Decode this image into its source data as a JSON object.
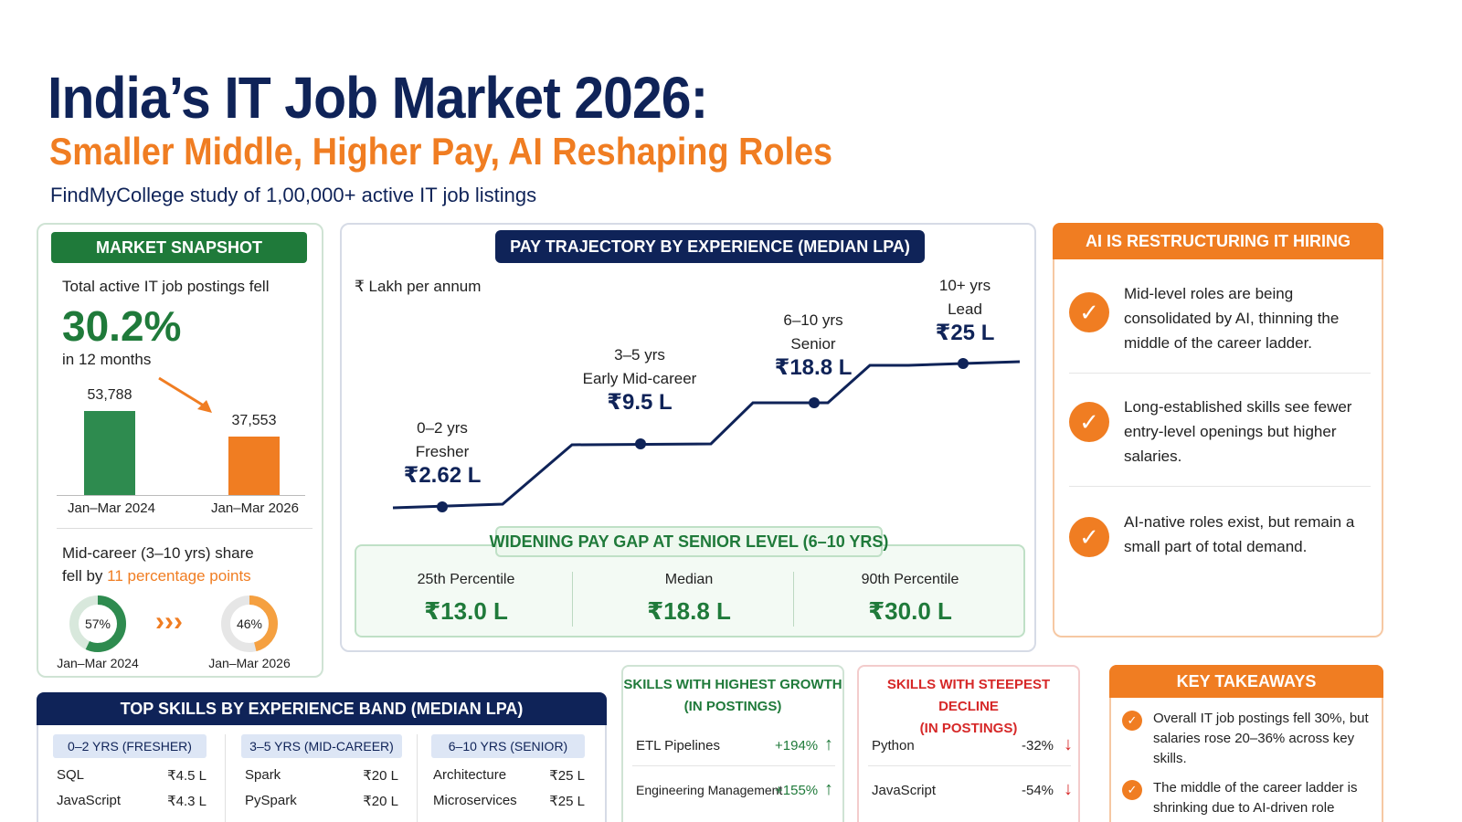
{
  "header": {
    "title": "India’s IT Job Market 2026:",
    "subtitle": "Smaller Middle, Higher Pay, AI Reshaping Roles",
    "source": "FindMyCollege study of 1,00,000+ active IT job listings"
  },
  "snapshot": {
    "heading": "MARKET SNAPSHOT",
    "intro": "Total active IT job postings fell",
    "drop_pct": "30.2%",
    "period": "in 12 months",
    "bars": [
      {
        "label": "Jan–Mar 2024",
        "value": 53788,
        "value_text": "53,788",
        "color": "#2e8b4f"
      },
      {
        "label": "Jan–Mar 2026",
        "value": 37553,
        "value_text": "37,553",
        "color": "#f07d22"
      }
    ],
    "mid_text_1": "Mid-career (3–10 yrs) share",
    "mid_text_2a": "fell by ",
    "mid_text_2b": "11 percentage points",
    "donuts": [
      {
        "label": "Jan–Mar 2024",
        "pct": 57,
        "pct_text": "57%",
        "color": "#2e8b4f"
      },
      {
        "label": "Jan–Mar 2026",
        "pct": 46,
        "pct_text": "46%",
        "color": "#f5a040"
      }
    ],
    "arrows": "›››"
  },
  "pay": {
    "heading": "PAY TRAJECTORY BY EXPERIENCE (MEDIAN LPA)",
    "axis_note": "₹ Lakh per annum",
    "levels": [
      {
        "band": "0–2 yrs",
        "role": "Fresher",
        "amount": "₹2.62 L",
        "value": 2.62
      },
      {
        "band": "3–5 yrs",
        "role": "Early Mid-career",
        "amount": "₹9.5 L",
        "value": 9.5
      },
      {
        "band": "6–10 yrs",
        "role": "Senior",
        "amount": "₹18.8 L",
        "value": 18.8
      },
      {
        "band": "10+ yrs",
        "role": "Lead",
        "amount": "₹25 L",
        "value": 25
      }
    ],
    "gap": {
      "heading": "WIDENING PAY GAP AT SENIOR LEVEL (6–10 YRS)",
      "cols": [
        {
          "label": "25th Percentile",
          "value": "₹13.0 L"
        },
        {
          "label": "Median",
          "value": "₹18.8 L"
        },
        {
          "label": "90th Percentile",
          "value": "₹30.0 L"
        }
      ]
    }
  },
  "ai": {
    "heading": "AI IS RESTRUCTURING IT HIRING",
    "items": [
      "Mid-level roles are being consolidated by AI, thinning the middle of the career ladder.",
      "Long-established skills see fewer entry-level openings but higher salaries.",
      "AI-native roles exist, but remain a small part of total demand."
    ],
    "check": "✓"
  },
  "skills": {
    "heading": "TOP SKILLS BY EXPERIENCE BAND (MEDIAN LPA)",
    "bands": [
      {
        "name": "0–2 YRS (FRESHER)",
        "rows": [
          {
            "skill": "SQL",
            "pay": "₹4.5 L"
          },
          {
            "skill": "JavaScript",
            "pay": "₹4.3 L"
          }
        ]
      },
      {
        "name": "3–5 YRS (MID-CAREER)",
        "rows": [
          {
            "skill": "Spark",
            "pay": "₹20 L"
          },
          {
            "skill": "PySpark",
            "pay": "₹20 L"
          }
        ]
      },
      {
        "name": "6–10 YRS (SENIOR)",
        "rows": [
          {
            "skill": "Architecture",
            "pay": "₹25 L"
          },
          {
            "skill": "Microservices",
            "pay": "₹25 L"
          }
        ]
      }
    ]
  },
  "growth": {
    "heading_1": "SKILLS WITH HIGHEST GROWTH",
    "heading_2": "(IN POSTINGS)",
    "color": "#1f7a3a",
    "rows": [
      {
        "skill": "ETL Pipelines",
        "change": "+194%"
      },
      {
        "skill": "Engineering Management",
        "change": "+155%"
      }
    ]
  },
  "decline": {
    "heading_1": "SKILLS WITH STEEPEST DECLINE",
    "heading_2": "(IN POSTINGS)",
    "color": "#d62828",
    "rows": [
      {
        "skill": "Python",
        "change": "-32%"
      },
      {
        "skill": "JavaScript",
        "change": "-54%"
      }
    ]
  },
  "takeaways": {
    "heading": "KEY TAKEAWAYS",
    "items": [
      "Overall IT job postings fell 30%, but salaries rose 20–36% across key skills.",
      "The middle of the career ladder is shrinking due to AI-driven role consolidation."
    ]
  }
}
